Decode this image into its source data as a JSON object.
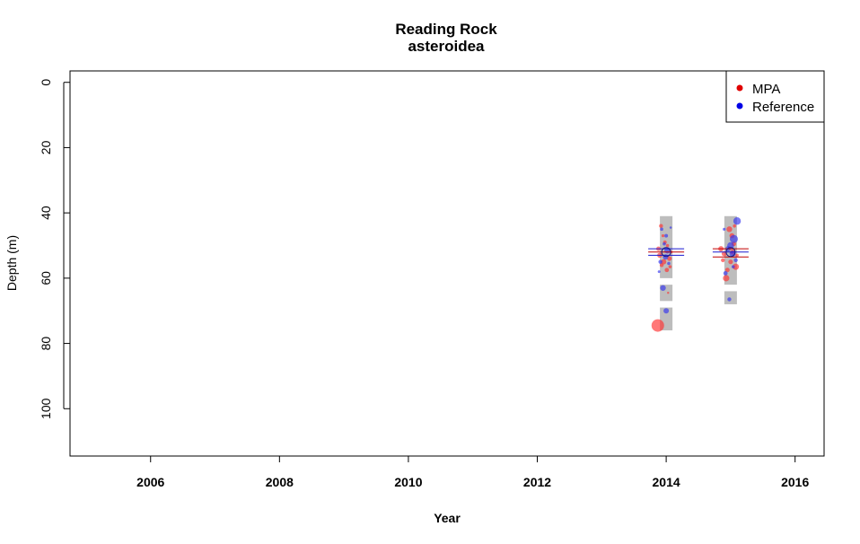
{
  "chart_data": {
    "type": "scatter",
    "title": "Reading Rock",
    "subtitle": "asteroidea",
    "xlabel": "Year",
    "ylabel": "Depth (m)",
    "xlim": [
      2004.75,
      2016.45
    ],
    "ylim": [
      -3.5,
      114.5
    ],
    "y_reversed": true,
    "xticks": [
      2006,
      2008,
      2010,
      2012,
      2014,
      2016
    ],
    "yticks": [
      0,
      20,
      40,
      60,
      80,
      100
    ],
    "grid": false,
    "legend_position": "top-right",
    "legend": [
      {
        "name": "MPA",
        "color": "#e00000"
      },
      {
        "name": "Reference",
        "color": "#0000e6"
      }
    ],
    "depth_ranges": [
      {
        "year": 2014,
        "segments": [
          [
            41,
            60
          ],
          [
            62,
            67
          ],
          [
            69,
            76
          ]
        ]
      },
      {
        "year": 2015,
        "segments": [
          [
            41,
            62
          ],
          [
            64,
            68
          ]
        ]
      }
    ],
    "series": [
      {
        "name": "MPA",
        "color": "#ff3030",
        "points": [
          {
            "x": 2013.87,
            "y": 74.5,
            "size": 7
          },
          {
            "x": 2013.92,
            "y": 44,
            "size": 2.2
          },
          {
            "x": 2013.95,
            "y": 47,
            "size": 1.6
          },
          {
            "x": 2013.98,
            "y": 49,
            "size": 2
          },
          {
            "x": 2013.88,
            "y": 51,
            "size": 2.5
          },
          {
            "x": 2014.02,
            "y": 50,
            "size": 1.8
          },
          {
            "x": 2013.9,
            "y": 53,
            "size": 2.8
          },
          {
            "x": 2014.05,
            "y": 54,
            "size": 2.6
          },
          {
            "x": 2013.93,
            "y": 56,
            "size": 2.2
          },
          {
            "x": 2014.01,
            "y": 57.5,
            "size": 2.4
          },
          {
            "x": 2014.06,
            "y": 56.5,
            "size": 1.8
          },
          {
            "x": 2013.96,
            "y": 55,
            "size": 3
          },
          {
            "x": 2014.08,
            "y": 52,
            "size": 1.5
          },
          {
            "x": 2014.03,
            "y": 64.5,
            "size": 1.2
          },
          {
            "x": 2014.85,
            "y": 51,
            "size": 3
          },
          {
            "x": 2014.9,
            "y": 52.5,
            "size": 2.8
          },
          {
            "x": 2014.93,
            "y": 60,
            "size": 3.6
          },
          {
            "x": 2014.98,
            "y": 45,
            "size": 3.2
          },
          {
            "x": 2015.02,
            "y": 47,
            "size": 2.8
          },
          {
            "x": 2015.05,
            "y": 49.5,
            "size": 2.5
          },
          {
            "x": 2015.08,
            "y": 56.5,
            "size": 3.5
          },
          {
            "x": 2015.0,
            "y": 55,
            "size": 2.6
          },
          {
            "x": 2014.95,
            "y": 57.5,
            "size": 2.5
          },
          {
            "x": 2015.06,
            "y": 44,
            "size": 1.8
          },
          {
            "x": 2015.1,
            "y": 53,
            "size": 1.8
          },
          {
            "x": 2014.88,
            "y": 54.5,
            "size": 2.2
          },
          {
            "x": 2015.03,
            "y": 52,
            "size": 2.8
          }
        ]
      },
      {
        "name": "Reference",
        "color": "#3333ee",
        "points": [
          {
            "x": 2013.93,
            "y": 45,
            "size": 1.8
          },
          {
            "x": 2014.0,
            "y": 47,
            "size": 2
          },
          {
            "x": 2013.97,
            "y": 49.5,
            "size": 1.8
          },
          {
            "x": 2014.02,
            "y": 51.5,
            "size": 3.5
          },
          {
            "x": 2013.99,
            "y": 53.5,
            "size": 3
          },
          {
            "x": 2013.91,
            "y": 55,
            "size": 2.2
          },
          {
            "x": 2014.04,
            "y": 55.5,
            "size": 1.8
          },
          {
            "x": 2013.95,
            "y": 63,
            "size": 3.2
          },
          {
            "x": 2014.0,
            "y": 70,
            "size": 3
          },
          {
            "x": 2014.07,
            "y": 44.5,
            "size": 1.3
          },
          {
            "x": 2013.89,
            "y": 58,
            "size": 1.5
          },
          {
            "x": 2015.1,
            "y": 42.5,
            "size": 4.2
          },
          {
            "x": 2015.05,
            "y": 48,
            "size": 4.5
          },
          {
            "x": 2015.0,
            "y": 50,
            "size": 3.8
          },
          {
            "x": 2015.03,
            "y": 52.5,
            "size": 3.4
          },
          {
            "x": 2014.96,
            "y": 51,
            "size": 3
          },
          {
            "x": 2015.08,
            "y": 54.5,
            "size": 2.2
          },
          {
            "x": 2014.92,
            "y": 58.5,
            "size": 2.4
          },
          {
            "x": 2014.98,
            "y": 66.5,
            "size": 2.2
          },
          {
            "x": 2014.9,
            "y": 45,
            "size": 1.6
          },
          {
            "x": 2015.04,
            "y": 56.5,
            "size": 1.8
          }
        ]
      }
    ],
    "mean_markers": [
      {
        "x": 2014,
        "y": 51,
        "color": "#1a1ad0"
      },
      {
        "x": 2014,
        "y": 52,
        "color": "#c00000"
      },
      {
        "x": 2014,
        "y": 53,
        "color": "#1a1ad0"
      },
      {
        "x": 2015,
        "y": 51,
        "color": "#c00000"
      },
      {
        "x": 2015,
        "y": 52,
        "color": "#1a1ad0"
      },
      {
        "x": 2015,
        "y": 53.5,
        "color": "#c00000"
      }
    ]
  }
}
